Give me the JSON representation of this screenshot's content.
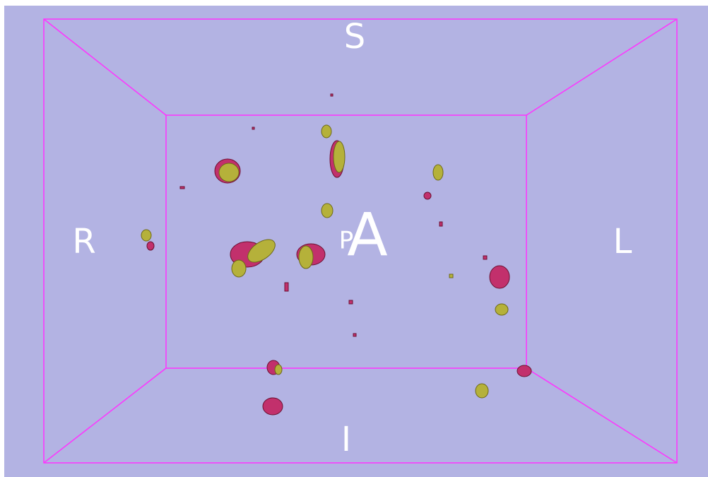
{
  "labels": {
    "superior": "S",
    "right": "R",
    "left": "L",
    "inferior": "I",
    "posterior": "P",
    "anterior": "A"
  }
}
